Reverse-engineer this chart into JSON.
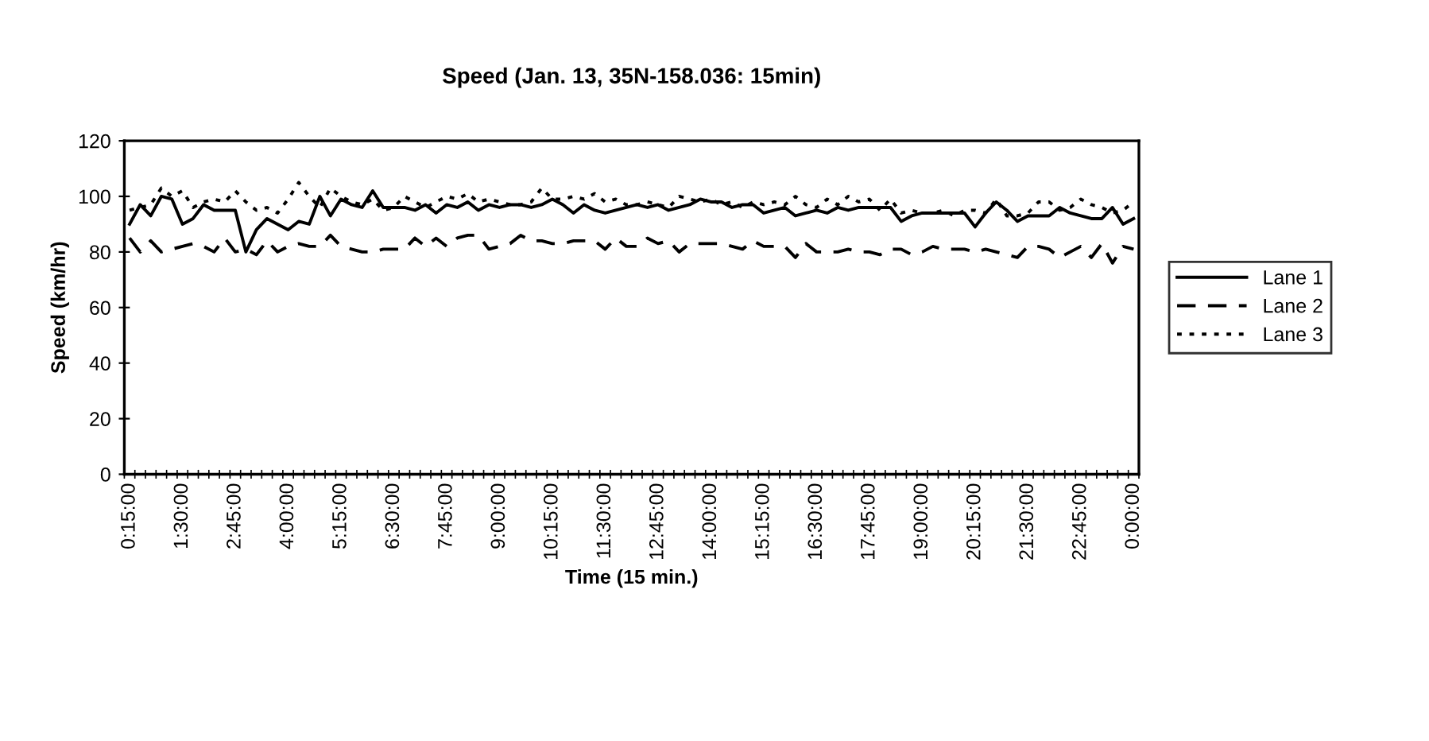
{
  "chart_data": {
    "type": "line",
    "title": "Speed (Jan. 13, 35N-158.036: 15min)",
    "xlabel": "Time (15 min.)",
    "ylabel": "Speed (km/hr)",
    "categories": [
      "0:15:00",
      null,
      null,
      null,
      null,
      "1:30:00",
      null,
      null,
      null,
      null,
      "2:45:00",
      null,
      null,
      null,
      null,
      "4:00:00",
      null,
      null,
      null,
      null,
      "5:15:00",
      null,
      null,
      null,
      null,
      "6:30:00",
      null,
      null,
      null,
      null,
      "7:45:00",
      null,
      null,
      null,
      null,
      "9:00:00",
      null,
      null,
      null,
      null,
      "10:15:00",
      null,
      null,
      null,
      null,
      "11:30:00",
      null,
      null,
      null,
      null,
      "12:45:00",
      null,
      null,
      null,
      null,
      "14:00:00",
      null,
      null,
      null,
      null,
      "15:15:00",
      null,
      null,
      null,
      null,
      "16:30:00",
      null,
      null,
      null,
      null,
      "17:45:00",
      null,
      null,
      null,
      null,
      "19:00:00",
      null,
      null,
      null,
      null,
      "20:15:00",
      null,
      null,
      null,
      null,
      "21:30:00",
      null,
      null,
      null,
      null,
      "22:45:00",
      null,
      null,
      null,
      null,
      "0:00:00"
    ],
    "series": [
      {
        "name": "Lane 1",
        "color": "#000000",
        "line_style": "solid",
        "values": [
          90,
          97,
          93,
          100,
          99,
          90,
          92,
          97,
          95,
          95,
          95,
          80,
          88,
          92,
          90,
          88,
          91,
          90,
          100,
          93,
          99,
          97,
          96,
          102,
          96,
          96,
          96,
          95,
          97,
          94,
          97,
          96,
          98,
          95,
          97,
          96,
          97,
          97,
          96,
          97,
          99,
          97,
          94,
          97,
          95,
          94,
          95,
          96,
          97,
          96,
          97,
          95,
          96,
          97,
          99,
          98,
          98,
          96,
          97,
          97,
          94,
          95,
          96,
          93,
          94,
          95,
          94,
          96,
          95,
          96,
          96,
          96,
          96,
          91,
          93,
          94,
          94,
          94,
          94,
          94,
          89,
          94,
          98,
          95,
          91,
          93,
          93,
          93,
          96,
          94,
          93,
          92,
          92,
          96,
          90,
          92
        ]
      },
      {
        "name": "Lane 2",
        "color": "#000000",
        "line_style": "dashed",
        "values": [
          85,
          80,
          84,
          80,
          81,
          82,
          83,
          82,
          80,
          85,
          80,
          81,
          79,
          84,
          80,
          82,
          83,
          82,
          82,
          86,
          82,
          81,
          80,
          80,
          81,
          81,
          81,
          85,
          82,
          85,
          82,
          85,
          86,
          86,
          81,
          82,
          83,
          86,
          84,
          84,
          83,
          83,
          84,
          84,
          84,
          81,
          85,
          82,
          82,
          85,
          83,
          84,
          80,
          83,
          83,
          83,
          83,
          82,
          81,
          84,
          82,
          82,
          82,
          78,
          83,
          80,
          80,
          80,
          81,
          80,
          80,
          79,
          81,
          81,
          79,
          80,
          82,
          81,
          81,
          81,
          80,
          81,
          80,
          79,
          78,
          82,
          82,
          81,
          78,
          80,
          82,
          78,
          83,
          76,
          82,
          81
        ]
      },
      {
        "name": "Lane 3",
        "color": "#000000",
        "line_style": "dotted",
        "values": [
          95,
          96,
          97,
          103,
          100,
          102,
          96,
          98,
          99,
          98,
          102,
          98,
          95,
          96,
          94,
          99,
          105,
          100,
          96,
          103,
          100,
          98,
          97,
          99,
          95,
          96,
          100,
          98,
          96,
          98,
          100,
          99,
          101,
          98,
          99,
          98,
          97,
          97,
          98,
          103,
          99,
          99,
          100,
          99,
          101,
          98,
          99,
          97,
          97,
          98,
          97,
          96,
          100,
          99,
          98,
          99,
          97,
          98,
          96,
          98,
          97,
          98,
          97,
          100,
          97,
          96,
          99,
          97,
          100,
          98,
          99,
          95,
          99,
          94,
          95,
          94,
          94,
          95,
          93,
          95,
          95,
          94,
          99,
          93,
          93,
          94,
          98,
          98,
          95,
          96,
          99,
          97,
          96,
          94,
          95,
          98
        ]
      }
    ],
    "ylim": [
      0,
      120
    ],
    "yticks": [
      0,
      20,
      40,
      60,
      80,
      100,
      120
    ],
    "grid": false,
    "legend": "right"
  }
}
